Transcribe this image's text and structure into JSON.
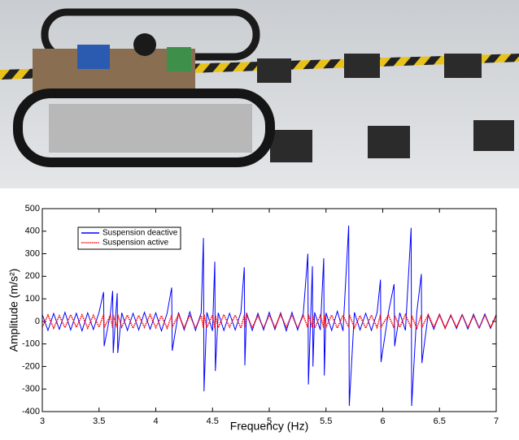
{
  "chart_data": {
    "type": "line",
    "x_label": "Frequency (Hz)",
    "y_label": "Amplitude (m/s²)",
    "xlim": [
      3,
      7
    ],
    "xticks": [
      3,
      3.5,
      4,
      4.5,
      5,
      5.5,
      6,
      6.5,
      7
    ],
    "ylim": [
      -400,
      500
    ],
    "yticks": [
      -400,
      -300,
      -200,
      -100,
      0,
      100,
      200,
      300,
      400,
      500
    ],
    "legend": "upper left",
    "x": [
      3,
      3.05,
      3.1,
      3.15,
      3.2,
      3.25,
      3.3,
      3.35,
      3.4,
      3.45,
      3.5,
      3.54,
      3.545,
      3.6,
      3.62,
      3.625,
      3.66,
      3.665,
      3.7,
      3.75,
      3.8,
      3.85,
      3.9,
      3.95,
      4,
      4.05,
      4.1,
      4.14,
      4.145,
      4.2,
      4.25,
      4.3,
      4.35,
      4.4,
      4.42,
      4.425,
      4.45,
      4.5,
      4.52,
      4.525,
      4.55,
      4.6,
      4.65,
      4.7,
      4.75,
      4.78,
      4.785,
      4.8,
      4.85,
      4.9,
      4.95,
      5,
      5.05,
      5.1,
      5.15,
      5.2,
      5.25,
      5.3,
      5.34,
      5.345,
      5.38,
      5.385,
      5.4,
      5.45,
      5.48,
      5.485,
      5.5,
      5.55,
      5.6,
      5.65,
      5.7,
      5.705,
      5.75,
      5.8,
      5.85,
      5.9,
      5.95,
      5.98,
      5.985,
      6.05,
      6.1,
      6.105,
      6.15,
      6.2,
      6.25,
      6.255,
      6.3,
      6.34,
      6.345,
      6.4,
      6.45,
      6.5,
      6.55,
      6.6,
      6.65,
      6.7,
      6.75,
      6.8,
      6.85,
      6.9,
      6.95,
      7
    ],
    "series": [
      {
        "name": "Suspension deactive",
        "color": "#0000ff",
        "style": "solid",
        "values": [
          30,
          -40,
          35,
          -35,
          40,
          -38,
          36,
          -42,
          38,
          -36,
          40,
          130,
          -110,
          35,
          135,
          -140,
          125,
          -140,
          38,
          -40,
          36,
          -38,
          40,
          -35,
          38,
          -42,
          36,
          150,
          -130,
          40,
          -38,
          42,
          -40,
          38,
          370,
          -310,
          40,
          -42,
          265,
          -220,
          38,
          -40,
          36,
          -38,
          40,
          240,
          -195,
          38,
          -40,
          36,
          -38,
          40,
          -36,
          38,
          -42,
          40,
          -38,
          36,
          300,
          -280,
          245,
          -200,
          40,
          -38,
          280,
          -240,
          38,
          -40,
          45,
          -42,
          425,
          -375,
          40,
          -38,
          36,
          -40,
          38,
          185,
          -180,
          40,
          165,
          -110,
          38,
          -40,
          415,
          -375,
          40,
          210,
          -185,
          30,
          -35,
          32,
          -30,
          28,
          -32,
          30,
          -34,
          32,
          -30,
          33,
          -31,
          30
        ]
      },
      {
        "name": "Suspension active",
        "color": "#ff0000",
        "style": "dotted",
        "values": [
          -25,
          28,
          -30,
          25,
          -28,
          30,
          -26,
          29,
          -30,
          27,
          -25,
          30,
          -28,
          26,
          -30,
          28,
          -27,
          30,
          -25,
          28,
          -30,
          27,
          -26,
          30,
          -28,
          25,
          -30,
          28,
          -26,
          30,
          -28,
          27,
          -30,
          26,
          -29,
          30,
          -27,
          28,
          -30,
          26,
          -28,
          30,
          -25,
          28,
          -30,
          27,
          -26,
          30,
          -28,
          25,
          -30,
          28,
          -27,
          30,
          -25,
          28,
          -30,
          26,
          -28,
          30,
          -27,
          28,
          -30,
          26,
          -28,
          30,
          -25,
          28,
          -30,
          27,
          -26,
          30,
          -28,
          25,
          -30,
          28,
          -27,
          30,
          -25,
          28,
          -30,
          27,
          -26,
          30,
          -28,
          25,
          -30,
          28,
          -27,
          30,
          -25,
          28,
          -30,
          27,
          -26,
          30,
          -28,
          25,
          -30,
          28,
          -27,
          25
        ]
      }
    ]
  }
}
